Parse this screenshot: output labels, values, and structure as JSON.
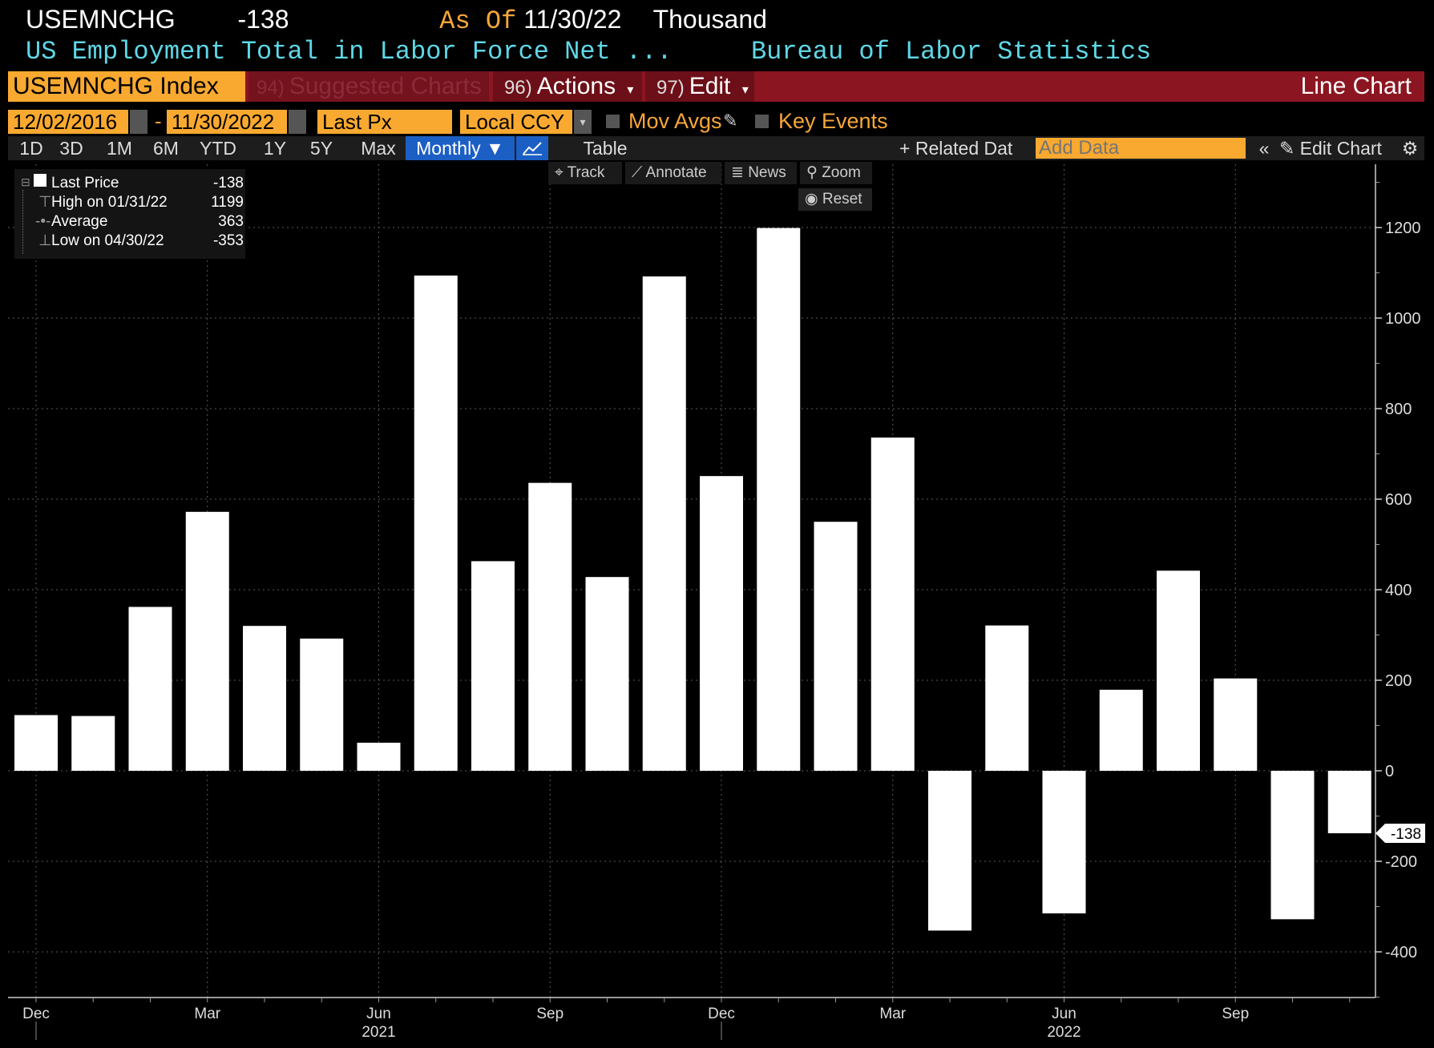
{
  "header": {
    "ticker": "USEMNCHG",
    "last_value": "-138",
    "as_of_label": "As Of",
    "as_of_date": "11/30/22",
    "units": "Thousand",
    "description": "US Employment Total in Labor Force Net ...",
    "source": "Bureau of Labor Statistics"
  },
  "toolbar": {
    "security": "USEMNCHG Index",
    "suggested_num": "94)",
    "suggested_label": "Suggested Charts",
    "actions_num": "96)",
    "actions_label": "Actions",
    "edit_num": "97)",
    "edit_label": "Edit",
    "chart_type": "Line Chart"
  },
  "controls": {
    "start_date": "12/02/2016",
    "date_sep": "-",
    "end_date": "11/30/2022",
    "field": "Last Px",
    "currency": "Local CCY",
    "mov_avgs": "Mov Avgs",
    "key_events": "Key Events"
  },
  "ranges": [
    "1D",
    "3D",
    "1M",
    "6M",
    "YTD",
    "1Y",
    "5Y",
    "Max"
  ],
  "periodicity": "Monthly",
  "table_label": "Table",
  "related_data": "Related Dat",
  "add_data_placeholder": "Add Data",
  "edit_chart": "Edit Chart",
  "chart_tools": {
    "track": "Track",
    "annotate": "Annotate",
    "news": "News",
    "zoom": "Zoom",
    "reset": "Reset"
  },
  "legend": {
    "last_label": "Last Price",
    "last_value": "-138",
    "high_label": "High on 01/31/22",
    "high_value": "1199",
    "avg_label": "Average",
    "avg_value": "363",
    "low_label": "Low on 04/30/22",
    "low_value": "-353"
  },
  "colors": {
    "accent": "#f9a930",
    "bar": "#ffffff",
    "title_cyan": "#5fd7e6",
    "toolbar_red": "#8b1520"
  },
  "chart_data": {
    "type": "bar",
    "categories": [
      "Dec 2020",
      "Jan 2021",
      "Feb 2021",
      "Mar 2021",
      "Apr 2021",
      "May 2021",
      "Jun 2021",
      "Jul 2021",
      "Aug 2021",
      "Sep 2021",
      "Oct 2021",
      "Nov 2021",
      "Dec 2021",
      "Jan 2022",
      "Feb 2022",
      "Mar 2022",
      "Apr 2022",
      "May 2022",
      "Jun 2022",
      "Jul 2022",
      "Aug 2022",
      "Sep 2022",
      "Oct 2022",
      "Nov 2022"
    ],
    "values": [
      123,
      121,
      362,
      572,
      320,
      292,
      62,
      1094,
      463,
      636,
      428,
      1092,
      651,
      1199,
      550,
      736,
      -353,
      321,
      -315,
      179,
      442,
      204,
      -328,
      -138
    ],
    "ylim": [
      -500,
      1300
    ],
    "yticks": [
      -400,
      -200,
      0,
      200,
      400,
      600,
      800,
      1000,
      1200
    ],
    "xtick_labels": [
      "Dec",
      "Mar",
      "Jun",
      "Sep",
      "Dec",
      "Mar",
      "Jun",
      "Sep"
    ],
    "xtick_index": [
      0,
      3,
      6,
      9,
      12,
      15,
      18,
      21
    ],
    "year_labels": [
      "2021",
      "2022"
    ],
    "year_index": [
      6,
      18
    ],
    "last_value_label": "-138",
    "grid": true
  }
}
